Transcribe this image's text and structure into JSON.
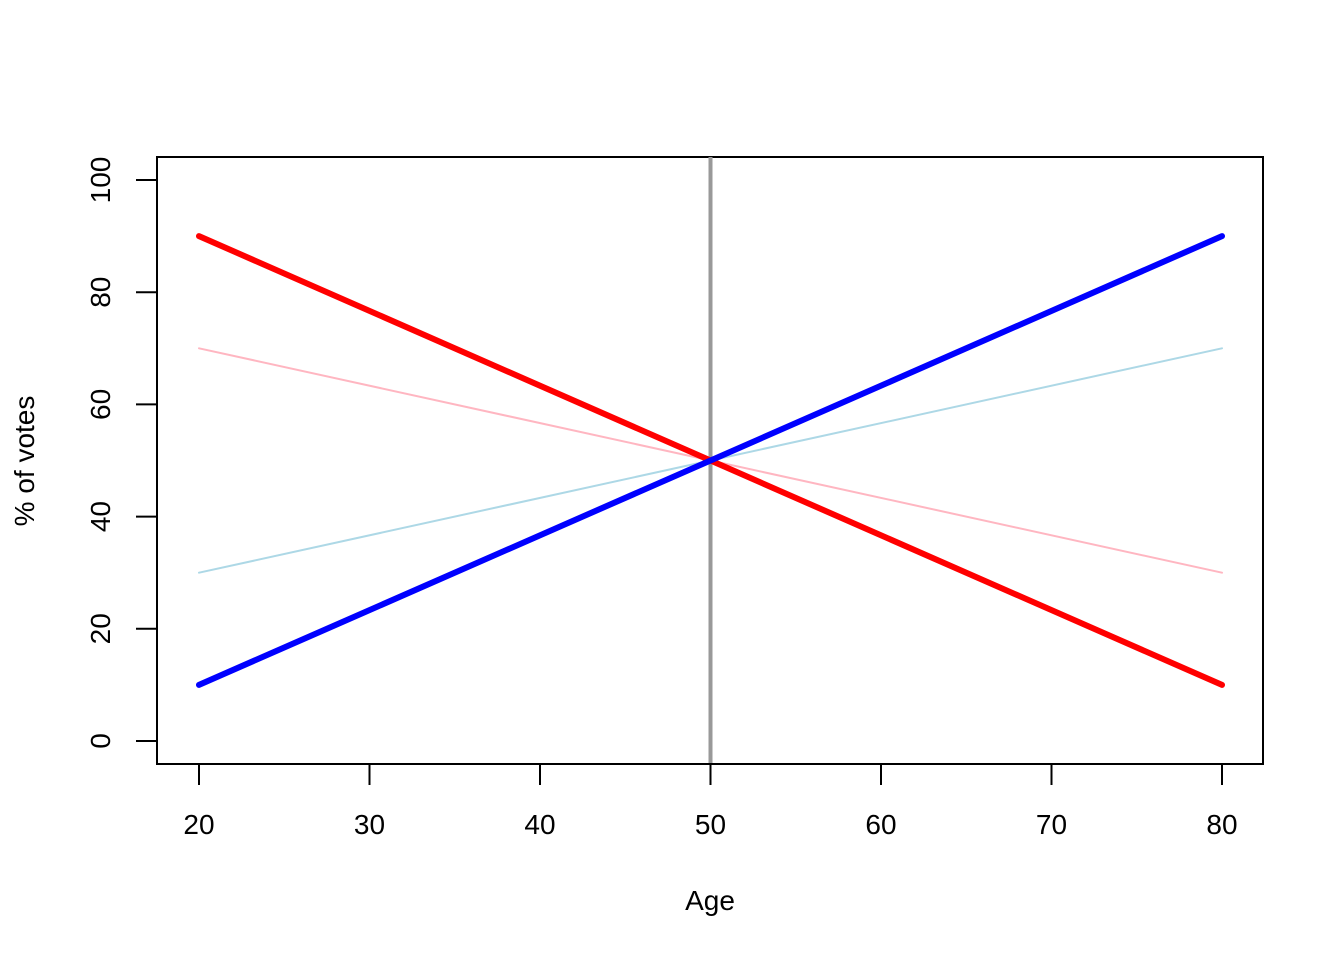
{
  "chart_data": {
    "type": "line",
    "xlabel": "Age",
    "ylabel": "% of votes",
    "xlim": [
      20,
      80
    ],
    "ylim": [
      0,
      100
    ],
    "x_ticks": [
      20,
      30,
      40,
      50,
      60,
      70,
      80
    ],
    "y_ticks": [
      0,
      20,
      40,
      60,
      80,
      100
    ],
    "grid": false,
    "legend": "none",
    "reference_lines": [
      {
        "orientation": "vertical",
        "x": 50,
        "color": "#999999"
      }
    ],
    "series": [
      {
        "x": [
          20,
          80
        ],
        "y": [
          70,
          30
        ],
        "color": "#ffb6c1",
        "style": "thin"
      },
      {
        "x": [
          20,
          80
        ],
        "y": [
          30,
          70
        ],
        "color": "#add8e6",
        "style": "thin"
      },
      {
        "x": [
          20,
          80
        ],
        "y": [
          90,
          10
        ],
        "color": "#ff0000",
        "style": "thick"
      },
      {
        "x": [
          20,
          80
        ],
        "y": [
          10,
          90
        ],
        "color": "#0000ff",
        "style": "thick"
      }
    ]
  }
}
